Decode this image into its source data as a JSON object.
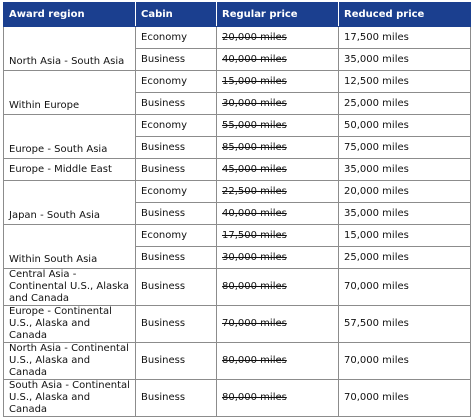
{
  "headers": {
    "region": "Award region",
    "cabin": "Cabin",
    "regular": "Regular price",
    "reduced": "Reduced price"
  },
  "rows": [
    {
      "region": "North Asia - South Asia",
      "cabin": "Economy",
      "regular": "20,000 miles",
      "reduced": "17,500 miles"
    },
    {
      "region": "North Asia - South Asia",
      "cabin": "Business",
      "regular": "40,000 miles",
      "reduced": "35,000 miles"
    },
    {
      "region": "Within Europe",
      "cabin": "Economy",
      "regular": "15,000 miles",
      "reduced": "12,500 miles"
    },
    {
      "region": "Within Europe",
      "cabin": "Business",
      "regular": "30,000 miles",
      "reduced": "25,000 miles"
    },
    {
      "region": "Europe - South Asia",
      "cabin": "Economy",
      "regular": "55,000 miles",
      "reduced": "50,000 miles"
    },
    {
      "region": "Europe - South Asia",
      "cabin": "Business",
      "regular": "85,000 miles",
      "reduced": "75,000 miles"
    },
    {
      "region": "Europe - Middle East",
      "cabin": "Business",
      "regular": "45,000 miles",
      "reduced": "35,000 miles"
    },
    {
      "region": "Japan - South Asia",
      "cabin": "Economy",
      "regular": "22,500 miles",
      "reduced": "20,000 miles"
    },
    {
      "region": "Japan - South Asia",
      "cabin": "Business",
      "regular": "40,000 miles",
      "reduced": "35,000 miles"
    },
    {
      "region": "Within South Asia",
      "cabin": "Economy",
      "regular": "17,500 miles",
      "reduced": "15,000 miles"
    },
    {
      "region": "Within South Asia",
      "cabin": "Business",
      "regular": "30,000 miles",
      "reduced": "25,000 miles"
    },
    {
      "region": "Central Asia - Continental U.S., Alaska and Canada",
      "cabin": "Business",
      "regular": "80,000 miles",
      "reduced": "70,000 miles"
    },
    {
      "region": "Europe - Continental U.S., Alaska and Canada",
      "cabin": "Business",
      "regular": "70,000 miles",
      "reduced": "57,500 miles"
    },
    {
      "region": "North Asia - Continental U.S., Alaska and Canada",
      "cabin": "Business",
      "regular": "80,000 miles",
      "reduced": "70,000 miles"
    },
    {
      "region": "South Asia - Continental U.S., Alaska and Canada",
      "cabin": "Business",
      "regular": "80,000 miles",
      "reduced": "70,000 miles"
    }
  ]
}
